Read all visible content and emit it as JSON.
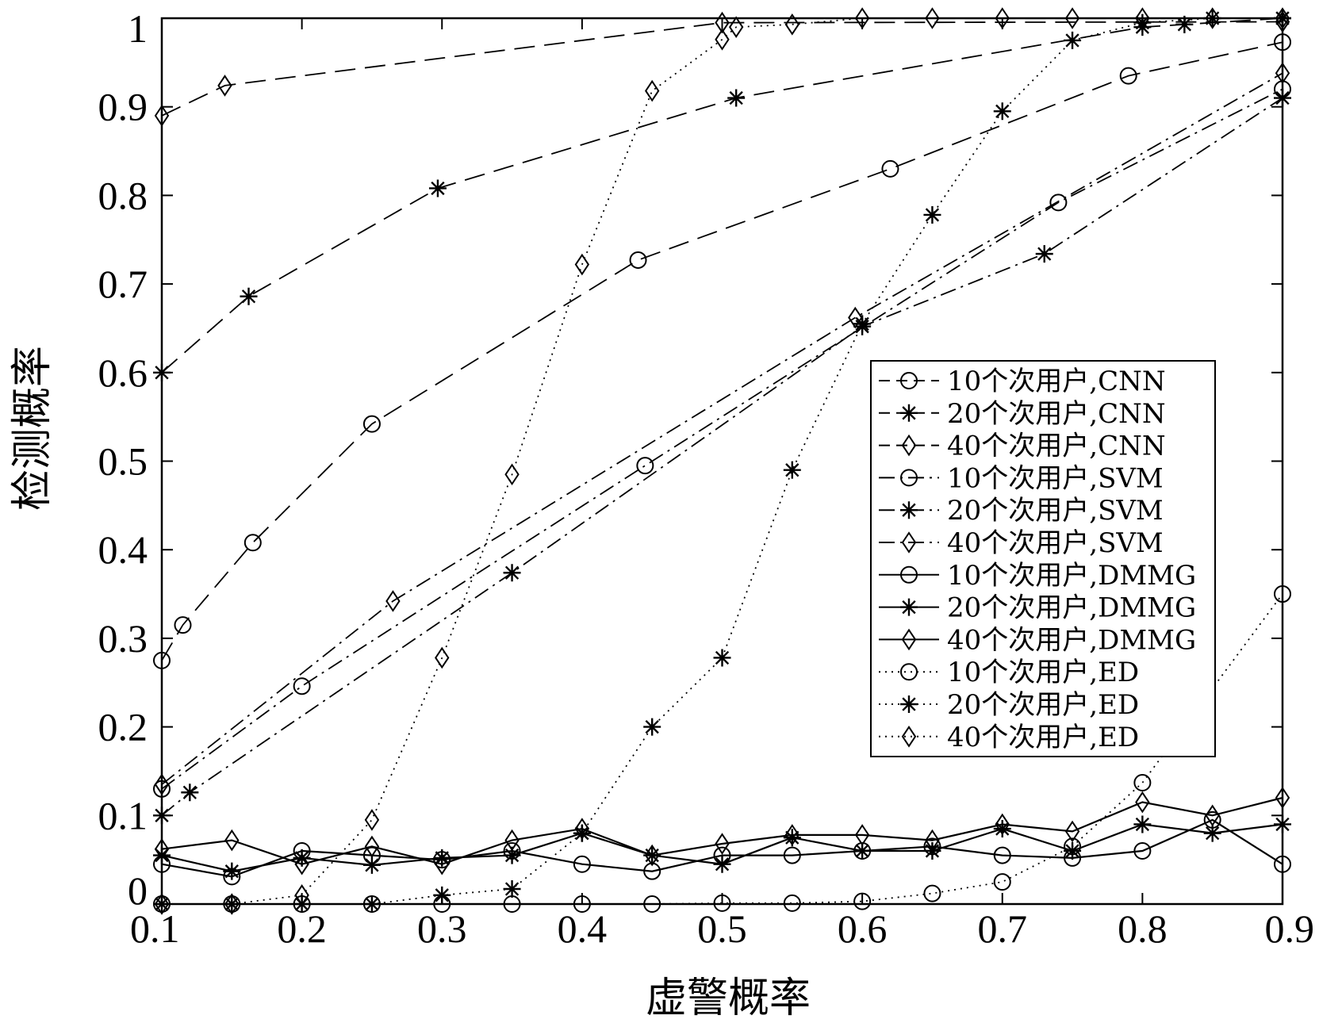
{
  "chart_data": {
    "type": "line",
    "xlabel": "虚警概率",
    "ylabel": "检测概率",
    "xlim": [
      0.1,
      0.9
    ],
    "ylim": [
      0,
      1
    ],
    "xticks": [
      "0.1",
      "0.2",
      "0.3",
      "0.4",
      "0.5",
      "0.6",
      "0.7",
      "0.8",
      "0.9"
    ],
    "yticks": [
      "0",
      "0.1",
      "0.2",
      "0.3",
      "0.4",
      "0.5",
      "0.6",
      "0.7",
      "0.8",
      "0.9",
      "1"
    ],
    "grid": false,
    "legend_position": "center-right",
    "series": [
      {
        "name": "10个次用户,CNN",
        "line_style": "dashed",
        "marker": "circle",
        "x": [
          0.1,
          0.115,
          0.165,
          0.25,
          0.44,
          0.62,
          0.79,
          0.9
        ],
        "y": [
          0.275,
          0.315,
          0.408,
          0.542,
          0.727,
          0.83,
          0.935,
          0.973
        ]
      },
      {
        "name": "20个次用户,CNN",
        "line_style": "dashed",
        "marker": "star",
        "x": [
          0.1,
          0.162,
          0.297,
          0.51,
          0.8,
          0.83,
          0.9
        ],
        "y": [
          0.6,
          0.686,
          0.808,
          0.91,
          0.99,
          0.993,
          1.0
        ]
      },
      {
        "name": "40个次用户,CNN",
        "line_style": "dashed",
        "marker": "diamond",
        "x": [
          0.1,
          0.145,
          0.5,
          0.9
        ],
        "y": [
          0.89,
          0.924,
          0.995,
          0.996
        ]
      },
      {
        "name": "10个次用户,SVM",
        "line_style": "dashdot",
        "marker": "circle",
        "x": [
          0.1,
          0.2,
          0.445,
          0.74,
          0.9
        ],
        "y": [
          0.13,
          0.246,
          0.495,
          0.792,
          0.92
        ]
      },
      {
        "name": "20个次用户,SVM",
        "line_style": "dashdot",
        "marker": "star",
        "x": [
          0.1,
          0.12,
          0.35,
          0.6,
          0.73,
          0.9
        ],
        "y": [
          0.1,
          0.126,
          0.374,
          0.652,
          0.734,
          0.91
        ]
      },
      {
        "name": "40个次用户,SVM",
        "line_style": "dashdot",
        "marker": "diamond",
        "x": [
          0.1,
          0.265,
          0.595,
          0.9
        ],
        "y": [
          0.135,
          0.342,
          0.662,
          0.938
        ]
      },
      {
        "name": "10个次用户,DMMG",
        "line_style": "solid",
        "marker": "circle",
        "x": [
          0.1,
          0.15,
          0.2,
          0.25,
          0.3,
          0.35,
          0.4,
          0.45,
          0.5,
          0.55,
          0.6,
          0.65,
          0.7,
          0.75,
          0.8,
          0.85,
          0.9
        ],
        "y": [
          0.045,
          0.031,
          0.06,
          0.055,
          0.05,
          0.06,
          0.045,
          0.037,
          0.055,
          0.055,
          0.06,
          0.065,
          0.055,
          0.052,
          0.06,
          0.095,
          0.045
        ]
      },
      {
        "name": "20个次用户,DMMG",
        "line_style": "solid",
        "marker": "star",
        "x": [
          0.1,
          0.15,
          0.2,
          0.25,
          0.3,
          0.35,
          0.4,
          0.45,
          0.5,
          0.55,
          0.6,
          0.65,
          0.7,
          0.75,
          0.8,
          0.85,
          0.9
        ],
        "y": [
          0.055,
          0.037,
          0.052,
          0.044,
          0.052,
          0.055,
          0.08,
          0.055,
          0.045,
          0.075,
          0.06,
          0.06,
          0.085,
          0.06,
          0.09,
          0.08,
          0.09
        ]
      },
      {
        "name": "40个次用户,DMMG",
        "line_style": "solid",
        "marker": "diamond",
        "x": [
          0.1,
          0.15,
          0.2,
          0.25,
          0.3,
          0.35,
          0.4,
          0.45,
          0.5,
          0.55,
          0.6,
          0.65,
          0.7,
          0.75,
          0.8,
          0.85,
          0.9
        ],
        "y": [
          0.062,
          0.072,
          0.045,
          0.065,
          0.045,
          0.072,
          0.085,
          0.055,
          0.068,
          0.078,
          0.078,
          0.072,
          0.09,
          0.082,
          0.115,
          0.1,
          0.12
        ]
      },
      {
        "name": "10个次用户,ED",
        "line_style": "dotted",
        "marker": "circle",
        "x": [
          0.1,
          0.15,
          0.2,
          0.25,
          0.3,
          0.35,
          0.4,
          0.45,
          0.5,
          0.55,
          0.6,
          0.65,
          0.7,
          0.75,
          0.8,
          0.9
        ],
        "y": [
          0.0,
          0.0,
          0.0,
          0.0,
          0.0,
          0.0,
          0.0,
          0.0,
          0.001,
          0.001,
          0.003,
          0.012,
          0.025,
          0.065,
          0.137,
          0.35
        ]
      },
      {
        "name": "20个次用户,ED",
        "line_style": "dotted",
        "marker": "star",
        "x": [
          0.1,
          0.15,
          0.2,
          0.25,
          0.3,
          0.35,
          0.4,
          0.45,
          0.5,
          0.55,
          0.6,
          0.65,
          0.7,
          0.75,
          0.8,
          0.85,
          0.9
        ],
        "y": [
          0.0,
          0.0,
          0.0,
          0.0,
          0.01,
          0.017,
          0.08,
          0.2,
          0.278,
          0.49,
          0.655,
          0.778,
          0.895,
          0.975,
          0.995,
          1.0,
          1.0
        ]
      },
      {
        "name": "40个次用户,ED",
        "line_style": "dotted",
        "marker": "diamond",
        "x": [
          0.1,
          0.15,
          0.2,
          0.25,
          0.3,
          0.35,
          0.4,
          0.45,
          0.5,
          0.51,
          0.55,
          0.6,
          0.65,
          0.7,
          0.75,
          0.8,
          0.85,
          0.9
        ],
        "y": [
          0.0,
          0.0,
          0.01,
          0.095,
          0.278,
          0.485,
          0.722,
          0.918,
          0.976,
          0.99,
          0.993,
          1.0,
          1.0,
          1.0,
          1.0,
          1.0,
          1.0,
          1.0
        ]
      }
    ]
  }
}
